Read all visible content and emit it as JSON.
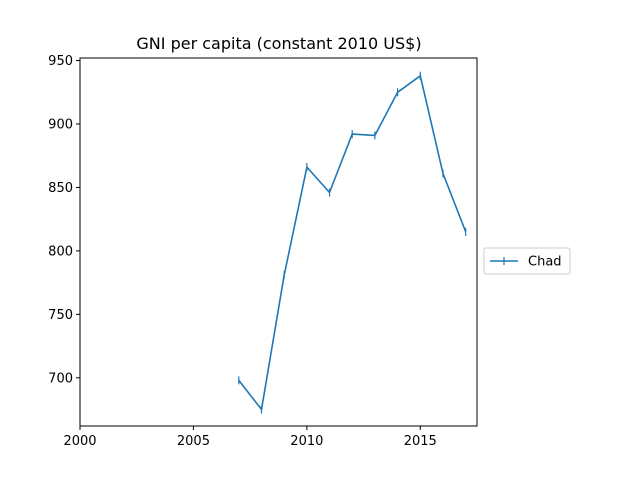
{
  "chart_data": {
    "type": "line",
    "title": "GNI per capita (constant 2010 US$)",
    "xlabel": "",
    "ylabel": "",
    "xlim": [
      2000,
      2017.5
    ],
    "ylim": [
      662,
      952
    ],
    "xticks": [
      2000,
      2005,
      2010,
      2015
    ],
    "yticks": [
      700,
      750,
      800,
      850,
      900,
      950
    ],
    "grid": false,
    "legend_position": "center-right",
    "series": [
      {
        "name": "Chad",
        "color": "#1f77b4",
        "marker": "vertical-tick",
        "x": [
          2007,
          2008,
          2009,
          2010,
          2011,
          2012,
          2013,
          2014,
          2015,
          2016,
          2017
        ],
        "y": [
          698,
          675,
          781,
          866,
          846,
          892,
          891,
          925,
          938,
          861,
          815
        ]
      }
    ]
  }
}
